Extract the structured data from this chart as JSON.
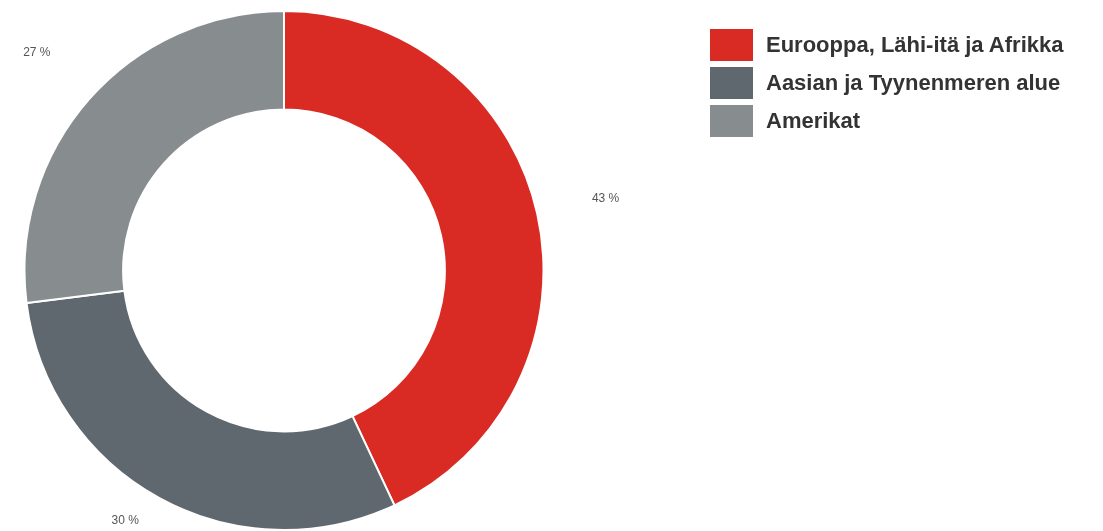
{
  "chart_data": {
    "type": "donut",
    "categories": [
      "Eurooppa, Lähi-itä ja Afrikka",
      "Aasian ja Tyynenmeren alue",
      "Amerikat"
    ],
    "values": [
      43,
      30,
      27
    ],
    "colors": [
      "#d92b24",
      "#5f686e",
      "#878d8f"
    ],
    "value_labels": [
      "43 %",
      "30 %",
      "27 %"
    ],
    "legend": "top right"
  }
}
